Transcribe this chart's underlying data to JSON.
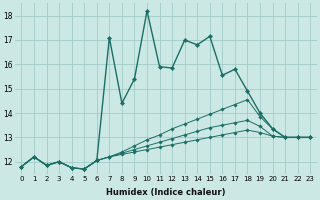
{
  "xlabel": "Humidex (Indice chaleur)",
  "background_color": "#cce8e5",
  "grid_color": "#a0ccc8",
  "line_color": "#1a6e65",
  "xlim": [
    -0.5,
    23.5
  ],
  "ylim": [
    11.5,
    18.5
  ],
  "yticks": [
    12,
    13,
    14,
    15,
    16,
    17,
    18
  ],
  "xticks": [
    0,
    1,
    2,
    3,
    4,
    5,
    6,
    7,
    8,
    9,
    10,
    11,
    12,
    13,
    14,
    15,
    16,
    17,
    18,
    19,
    20,
    21,
    22,
    23
  ],
  "series": [
    [
      11.8,
      12.2,
      11.85,
      12.0,
      11.75,
      11.7,
      12.05,
      17.1,
      14.4,
      15.4,
      18.2,
      15.9,
      15.85,
      17.0,
      16.8,
      17.15,
      15.55,
      15.8,
      14.9,
      14.0,
      13.35,
      13.0,
      13.0,
      13.0
    ],
    [
      11.8,
      12.2,
      11.85,
      12.0,
      11.75,
      11.7,
      12.05,
      12.2,
      12.4,
      12.65,
      12.9,
      13.1,
      13.35,
      13.55,
      13.75,
      13.95,
      14.15,
      14.35,
      14.55,
      13.85,
      13.35,
      13.0,
      13.0,
      13.0
    ],
    [
      11.8,
      12.2,
      11.85,
      12.0,
      11.75,
      11.7,
      12.05,
      12.2,
      12.35,
      12.5,
      12.65,
      12.8,
      12.95,
      13.1,
      13.25,
      13.4,
      13.5,
      13.6,
      13.7,
      13.45,
      13.05,
      13.0,
      13.0,
      13.0
    ],
    [
      11.8,
      12.2,
      11.85,
      12.0,
      11.75,
      11.7,
      12.05,
      12.2,
      12.3,
      12.4,
      12.5,
      12.6,
      12.7,
      12.8,
      12.9,
      13.0,
      13.1,
      13.2,
      13.3,
      13.2,
      13.05,
      13.0,
      13.0,
      13.0
    ]
  ]
}
